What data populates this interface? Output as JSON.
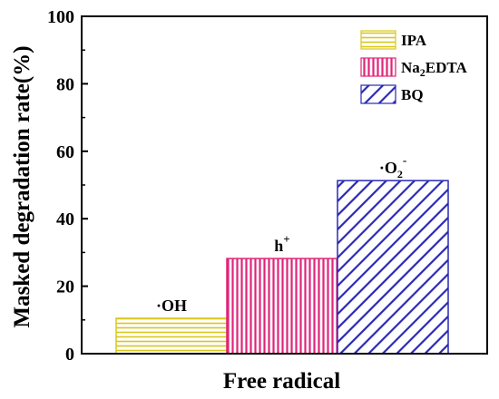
{
  "chart_data": {
    "type": "bar",
    "xlabel": "Free radical",
    "ylabel": "Masked degradation rate(%)",
    "ylim": [
      0,
      100
    ],
    "yticks": [
      0,
      20,
      40,
      60,
      80,
      100
    ],
    "grid": false,
    "legend_position": "top-right",
    "bars": [
      {
        "legend": "IPA",
        "legend_main": "IPA",
        "legend_sub": "",
        "legend_tail": "",
        "value": 10.5,
        "annotation": "·OH",
        "annotation_main": "·OH",
        "annotation_sup": "",
        "annotation_sub": "",
        "color": "#d8c81e",
        "pattern": "horizontal-lines"
      },
      {
        "legend": "Na2EDTA",
        "legend_main": "Na",
        "legend_sub": "2",
        "legend_tail": "EDTA",
        "value": 28.2,
        "annotation": "h+",
        "annotation_main": "h",
        "annotation_sup": "+",
        "annotation_sub": "",
        "color": "#e0247a",
        "pattern": "vertical-lines"
      },
      {
        "legend": "BQ",
        "legend_main": "BQ",
        "legend_sub": "",
        "legend_tail": "",
        "value": 51.3,
        "annotation": "·O2-",
        "annotation_main": "·O",
        "annotation_sub": "2",
        "annotation_sup": "-",
        "color": "#2929b5",
        "pattern": "diagonal-lines"
      }
    ]
  }
}
